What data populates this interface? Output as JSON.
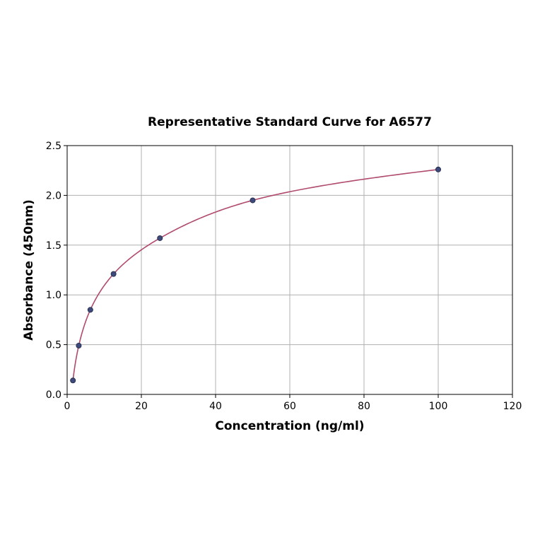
{
  "chart_data": {
    "type": "scatter",
    "title": "Representative Standard Curve for A6577",
    "xlabel": "Concentration (ng/ml)",
    "ylabel": "Absorbance (450nm)",
    "xlim": [
      0,
      120
    ],
    "ylim": [
      0,
      2.5
    ],
    "xticks": [
      0,
      20,
      40,
      60,
      80,
      100,
      120
    ],
    "yticks": [
      0.0,
      0.5,
      1.0,
      1.5,
      2.0,
      2.5
    ],
    "xtick_labels": [
      "0",
      "20",
      "40",
      "60",
      "80",
      "100",
      "120"
    ],
    "ytick_labels": [
      "0.0",
      "0.5",
      "1.0",
      "1.5",
      "2.0",
      "2.5"
    ],
    "grid": true,
    "series": [
      {
        "type": "scatter",
        "x": [
          1.56,
          3.13,
          6.25,
          12.5,
          25,
          50,
          100
        ],
        "y": [
          0.14,
          0.49,
          0.85,
          1.21,
          1.57,
          1.95,
          2.26
        ],
        "color": "#3d4a7a"
      },
      {
        "type": "line",
        "fit": "four-parameter logistic",
        "color": "#b04a6e"
      }
    ]
  }
}
